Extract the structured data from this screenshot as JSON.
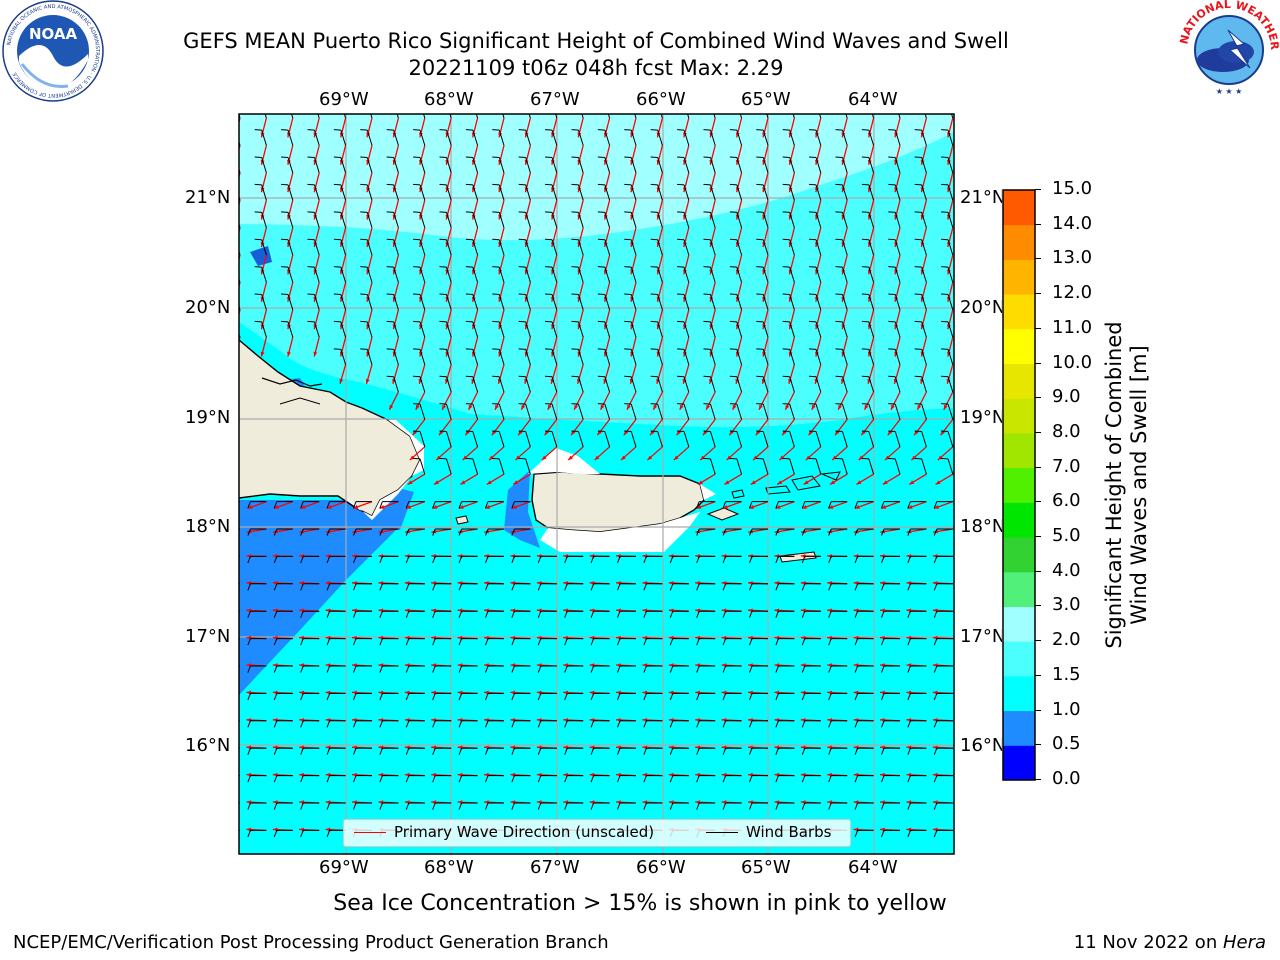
{
  "header": {
    "title_line1": "GEFS MEAN Puerto Rico Significant Height of Combined Wind Waves and Swell",
    "title_line2": "20221109 t06z 048h fcst   Max: 2.29"
  },
  "logos": {
    "noara": "NOAA",
    "noaa_ring": "NATIONAL OCEANIC AND ATMOSPHERIC ADMINISTRATION · U.S. DEPARTMENT OF COMMERCE",
    "nws_ring": "NATIONAL WEATHER SERVICE"
  },
  "map": {
    "lon_labels": [
      "69°W",
      "68°W",
      "67°W",
      "66°W",
      "65°W",
      "64°W"
    ],
    "lat_labels": [
      "21°N",
      "20°N",
      "19°N",
      "18°N",
      "17°N",
      "16°N"
    ],
    "legend": {
      "wave_direction": "Primary Wave Direction (unscaled)",
      "wind_barbs": "Wind Barbs",
      "wave_color": "#ff0000",
      "barb_color": "#000000"
    },
    "ocean_colors": {
      "lt_1_0": "#1e8cff",
      "1_0_to_1_5": "#00ffff",
      "1_5_to_2_0": "#4cffff",
      "2_0_to_3_0": "#a0ffff",
      "land": "#efecdc"
    }
  },
  "colorbar": {
    "title_line1": "Significant Height of Combined",
    "title_line2": "Wind Waves and Swell [m]",
    "ticks": [
      "15.0",
      "14.0",
      "13.0",
      "12.0",
      "11.0",
      "10.0",
      "9.0",
      "8.0",
      "7.0",
      "6.0",
      "5.0",
      "4.0",
      "3.0",
      "2.0",
      "1.5",
      "1.0",
      "0.5",
      "0.0"
    ],
    "colors_bottom_to_top": [
      "#0000ff",
      "#1e8cff",
      "#00ffff",
      "#4cffff",
      "#a0ffff",
      "#50f07a",
      "#32d232",
      "#00e600",
      "#50f000",
      "#a0e600",
      "#c8e600",
      "#e6e600",
      "#ffff00",
      "#ffdc00",
      "#ffb400",
      "#ff8c00",
      "#ff5a00",
      "#ff2800",
      "#ff0000"
    ]
  },
  "note": "Sea Ice Concentration > 15% is shown in pink to yellow",
  "footer": {
    "left": "NCEP/EMC/Verification Post Processing Product Generation Branch",
    "right_date": "11 Nov 2022 on ",
    "right_host": "Hera"
  }
}
